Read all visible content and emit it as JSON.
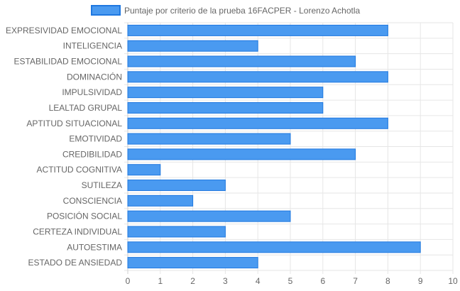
{
  "colors": {
    "bar_fill": "#4a9af0",
    "bar_stroke": "#1f78e0",
    "grid": "#e6e6e6",
    "axis": "#cfcfcf",
    "text": "#666666"
  },
  "chart_data": {
    "type": "bar",
    "orientation": "horizontal",
    "categories": [
      "EXPRESIVIDAD EMOCIONAL",
      "INTELIGENCIA",
      "ESTABILIDAD EMOCIONAL",
      "DOMINACIÓN",
      "IMPULSIVIDAD",
      "LEALTAD GRUPAL",
      "APTITUD SITUACIONAL",
      "EMOTIVIDAD",
      "CREDIBILIDAD",
      "ACTITUD COGNITIVA",
      "SUTILEZA",
      "CONSCIENCIA",
      "POSICIÓN SOCIAL",
      "CERTEZA INDIVIDUAL",
      "AUTOESTIMA",
      "ESTADO DE ANSIEDAD"
    ],
    "series": [
      {
        "name": "Puntaje por criterio de la prueba 16FACPER - Lorenzo Achotla",
        "values": [
          8,
          4,
          7,
          8,
          6,
          6,
          8,
          5,
          7,
          1,
          3,
          2,
          5,
          3,
          9,
          4
        ]
      }
    ],
    "xlim": [
      0,
      10
    ],
    "xticks": [
      "0",
      "1",
      "2",
      "3",
      "4",
      "5",
      "6",
      "7",
      "8",
      "9",
      "10"
    ],
    "grid": true,
    "legend_position": "top"
  }
}
